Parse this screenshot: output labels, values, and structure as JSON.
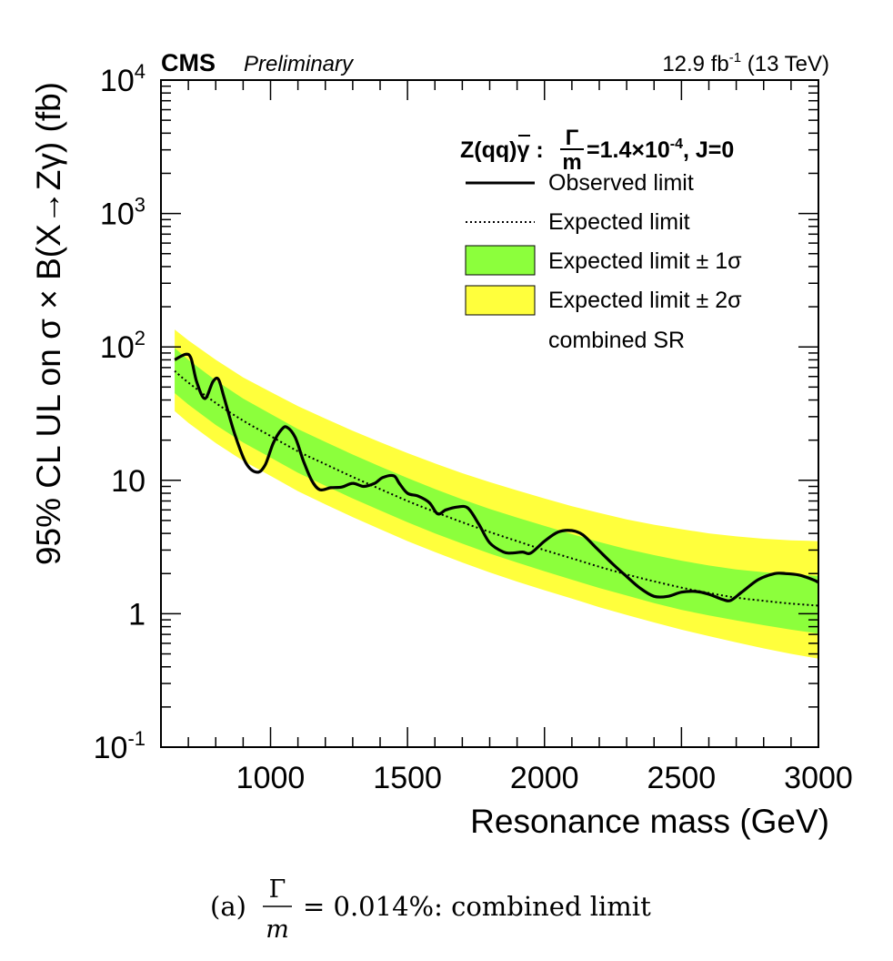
{
  "header": {
    "cms": "CMS",
    "preliminary": "Preliminary",
    "lumi_value": "12.9 fb",
    "lumi_exp": "-1",
    "energy": " (13 TeV)"
  },
  "legend": {
    "title_pre": "Z(q",
    "title_qbar": "q",
    "title_post": ")γ :",
    "title_frac_num": "Γ",
    "title_frac_den": "m",
    "title_val": "=1.4×10",
    "title_exp": "-4",
    "title_tail": ", J=0",
    "entries": [
      "Observed limit",
      "Expected limit",
      "Expected limit ± 1σ",
      "Expected limit ± 2σ",
      "combined SR"
    ]
  },
  "caption": {
    "label": "(a)",
    "frac_num": "Γ",
    "frac_den": "m",
    "eq": "= 0.014%: combined limit"
  },
  "colors": {
    "observed": "#000000",
    "expected": "#000000",
    "band_1sigma": "#8cff3c",
    "band_2sigma": "#ffff3c",
    "frame": "#000000"
  },
  "chart_data": {
    "type": "line",
    "xlabel": "Resonance mass (GeV)",
    "ylabel": "95% CL UL on σ × B(X→Zγ) (fb)",
    "xlim": [
      600,
      3000
    ],
    "ylim": [
      0.1,
      10000
    ],
    "yscale": "log",
    "xticks": [
      1000,
      1500,
      2000,
      2500,
      3000
    ],
    "ytick_labels": [
      {
        "value": 0.1,
        "base": "10",
        "exp": "-1"
      },
      {
        "value": 1,
        "base": "1",
        "exp": ""
      },
      {
        "value": 10,
        "base": "10",
        "exp": ""
      },
      {
        "value": 100,
        "base": "10",
        "exp": "2"
      },
      {
        "value": 1000,
        "base": "10",
        "exp": "3"
      },
      {
        "value": 10000,
        "base": "10",
        "exp": "4"
      }
    ],
    "band_mass": [
      650,
      700,
      800,
      900,
      1000,
      1100,
      1200,
      1300,
      1400,
      1500,
      1600,
      1700,
      1800,
      1900,
      2000,
      2100,
      2200,
      2300,
      2400,
      2500,
      2600,
      2700,
      2800,
      2900,
      3000
    ],
    "series": [
      {
        "name": "Expected limit",
        "values": [
          66,
          54,
          38,
          28,
          21.5,
          16.5,
          13.2,
          10.6,
          8.6,
          7.0,
          5.8,
          4.85,
          4.1,
          3.5,
          3.0,
          2.6,
          2.25,
          1.97,
          1.75,
          1.57,
          1.43,
          1.32,
          1.25,
          1.19,
          1.15
        ]
      },
      {
        "name": "Expected limit ± 1σ",
        "low": [
          45,
          37,
          26,
          19.2,
          14.8,
          11.4,
          9.1,
          7.3,
          5.95,
          4.85,
          4.0,
          3.35,
          2.83,
          2.42,
          2.08,
          1.8,
          1.56,
          1.37,
          1.2,
          1.07,
          0.97,
          0.89,
          0.82,
          0.76,
          0.71
        ],
        "high": [
          98,
          80,
          56,
          41,
          31.5,
          24.2,
          19.4,
          15.6,
          12.7,
          10.4,
          8.6,
          7.2,
          6.1,
          5.25,
          4.55,
          3.95,
          3.45,
          3.05,
          2.75,
          2.5,
          2.3,
          2.15,
          2.05,
          1.98,
          1.92
        ]
      },
      {
        "name": "Expected limit ± 2σ",
        "low": [
          33,
          27,
          19,
          14,
          10.8,
          8.3,
          6.6,
          5.3,
          4.3,
          3.5,
          2.9,
          2.42,
          2.04,
          1.74,
          1.5,
          1.3,
          1.12,
          0.98,
          0.86,
          0.76,
          0.68,
          0.61,
          0.55,
          0.5,
          0.46
        ]
      },
      {
        "name": "Expected limit ± 2σ high",
        "high": [
          135,
          112,
          80,
          59,
          46,
          36,
          29,
          23.5,
          19.3,
          16,
          13.4,
          11.3,
          9.7,
          8.4,
          7.3,
          6.4,
          5.7,
          5.1,
          4.65,
          4.3,
          4.0,
          3.8,
          3.65,
          3.55,
          3.5
        ]
      },
      {
        "name": "Observed limit",
        "x": [
          650,
          690,
          710,
          730,
          760,
          790,
          810,
          830,
          870,
          910,
          950,
          980,
          1010,
          1040,
          1060,
          1090,
          1120,
          1150,
          1180,
          1220,
          1260,
          1300,
          1340,
          1380,
          1410,
          1450,
          1470,
          1500,
          1540,
          1580,
          1610,
          1640,
          1680,
          1720,
          1760,
          1800,
          1850,
          1880,
          1920,
          1950,
          2000,
          2050,
          2100,
          2140,
          2190,
          2250,
          2300,
          2350,
          2400,
          2450,
          2500,
          2550,
          2600,
          2650,
          2680,
          2720,
          2780,
          2840,
          2880,
          2930,
          2980,
          3000
        ],
        "y": [
          80,
          88,
          82,
          55,
          41,
          55,
          57,
          42,
          22,
          13.5,
          11.5,
          13,
          19,
          24,
          25,
          21,
          14,
          10,
          8.5,
          8.8,
          8.9,
          9.5,
          9.0,
          9.5,
          10.5,
          10.8,
          9.5,
          8.0,
          7.6,
          6.8,
          5.6,
          6.0,
          6.3,
          6.2,
          4.7,
          3.4,
          2.9,
          2.85,
          2.9,
          2.85,
          3.5,
          4.1,
          4.2,
          3.9,
          3.1,
          2.35,
          1.9,
          1.55,
          1.35,
          1.35,
          1.45,
          1.47,
          1.4,
          1.28,
          1.26,
          1.45,
          1.8,
          2.0,
          2.0,
          1.95,
          1.8,
          1.72
        ]
      }
    ]
  }
}
